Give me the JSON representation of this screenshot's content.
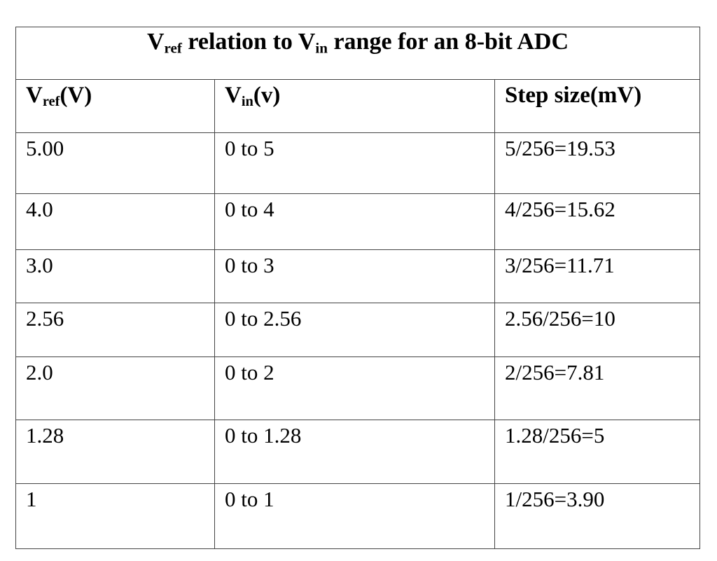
{
  "table": {
    "title": [
      "V",
      "ref",
      "relation to V",
      "in",
      "range for an 8-bit ADC"
    ],
    "header": [
      [
        "V",
        "ref",
        "(V)"
      ],
      [
        "V",
        "in",
        "(v)"
      ],
      [
        "Step size(mV)"
      ]
    ],
    "rows": [
      [
        "5.00",
        "0 to 5",
        "5/256=19.53"
      ],
      [
        "4.0",
        "0 to 4",
        "4/256=15.62"
      ],
      [
        "3.0",
        "0 to 3",
        "3/256=11.71"
      ],
      [
        "2.56",
        "0 to 2.56",
        "2.56/256=10"
      ],
      [
        "2.0",
        "0 to 2",
        "2/256=7.81"
      ],
      [
        "1.28",
        "0 to 1.28",
        "1.28/256=5"
      ],
      [
        "1",
        "0 to 1",
        "1/256=3.90"
      ]
    ]
  }
}
